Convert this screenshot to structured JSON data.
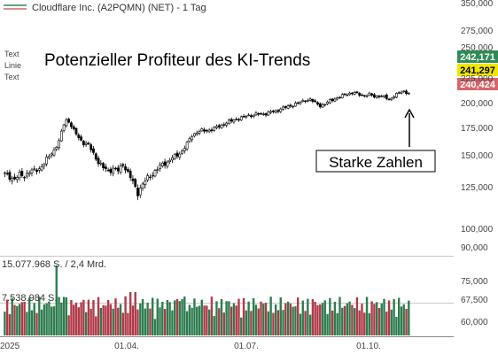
{
  "header": {
    "symbol_line": "Cloudflare Inc. (A2PQMN) (NET) - 1 Tag"
  },
  "left_labels": [
    "Text",
    "Linie",
    "Text"
  ],
  "annotations": {
    "title": "Potenzieller Profiteur des KI-Trends",
    "callout": "Starke Zahlen"
  },
  "price_badges": [
    {
      "value": "242,171",
      "bg": "#2e8b57",
      "fg": "#ffffff"
    },
    {
      "value": "241,297",
      "bg": "#f2e600",
      "fg": "#000000"
    },
    {
      "value": "240,424",
      "bg": "#d9646b",
      "fg": "#ffffff"
    }
  ],
  "volume_labels": {
    "top": "15.077.968 S. / 2,4 Mrd.",
    "mid": "7.538.984 S."
  },
  "colors": {
    "up": "#2e7d4f",
    "down": "#b03a48",
    "line": "#000000",
    "grid": "#c8c8c8",
    "legend_up": "#2e8b57",
    "legend_down": "#d9646b"
  },
  "chart_data": {
    "type": "candlestick",
    "y_scale": "log",
    "price_ticks": [
      "350,000",
      "275,000",
      "250,000",
      "225,000",
      "200,000",
      "175,000",
      "150,000",
      "125,000",
      "100,000",
      "90,000",
      "75,000",
      "67,500",
      "60,000"
    ],
    "x_ticks": [
      "2025",
      "01.04.",
      "01.07.",
      "01.10."
    ],
    "price_anchors": [
      [
        0,
        108
      ],
      [
        2,
        105
      ],
      [
        4,
        103
      ],
      [
        6,
        107
      ],
      [
        8,
        106
      ],
      [
        10,
        110
      ],
      [
        12,
        111
      ],
      [
        14,
        113
      ],
      [
        16,
        119
      ],
      [
        18,
        127
      ],
      [
        20,
        134
      ],
      [
        22,
        145
      ],
      [
        24,
        170
      ],
      [
        25,
        176
      ],
      [
        26,
        174
      ],
      [
        28,
        160
      ],
      [
        30,
        150
      ],
      [
        32,
        143
      ],
      [
        34,
        140
      ],
      [
        36,
        130
      ],
      [
        38,
        120
      ],
      [
        40,
        114
      ],
      [
        42,
        111
      ],
      [
        44,
        113
      ],
      [
        46,
        111
      ],
      [
        48,
        118
      ],
      [
        50,
        109
      ],
      [
        52,
        100
      ],
      [
        54,
        91
      ],
      [
        56,
        98
      ],
      [
        58,
        104
      ],
      [
        60,
        108
      ],
      [
        62,
        113
      ],
      [
        64,
        118
      ],
      [
        66,
        120
      ],
      [
        68,
        125
      ],
      [
        70,
        128
      ],
      [
        72,
        133
      ],
      [
        74,
        142
      ],
      [
        76,
        153
      ],
      [
        78,
        158
      ],
      [
        80,
        160
      ],
      [
        82,
        160
      ],
      [
        84,
        162
      ],
      [
        86,
        165
      ],
      [
        88,
        168
      ],
      [
        90,
        172
      ],
      [
        92,
        175
      ],
      [
        94,
        178
      ],
      [
        96,
        180
      ],
      [
        98,
        183
      ],
      [
        100,
        184
      ],
      [
        102,
        186
      ],
      [
        104,
        186
      ],
      [
        106,
        187
      ],
      [
        108,
        190
      ],
      [
        110,
        190
      ],
      [
        112,
        196
      ],
      [
        114,
        198
      ],
      [
        116,
        200
      ],
      [
        118,
        205
      ],
      [
        120,
        207
      ],
      [
        122,
        211
      ],
      [
        124,
        213
      ],
      [
        126,
        206
      ],
      [
        128,
        201
      ],
      [
        130,
        204
      ],
      [
        132,
        210
      ],
      [
        134,
        214
      ],
      [
        136,
        218
      ],
      [
        138,
        222
      ],
      [
        140,
        225
      ],
      [
        142,
        226
      ],
      [
        144,
        222
      ],
      [
        146,
        220
      ],
      [
        148,
        223
      ],
      [
        150,
        218
      ],
      [
        152,
        220
      ],
      [
        154,
        218
      ],
      [
        156,
        212
      ],
      [
        158,
        220
      ],
      [
        160,
        226
      ],
      [
        162,
        229
      ],
      [
        164,
        225
      ]
    ]
  }
}
